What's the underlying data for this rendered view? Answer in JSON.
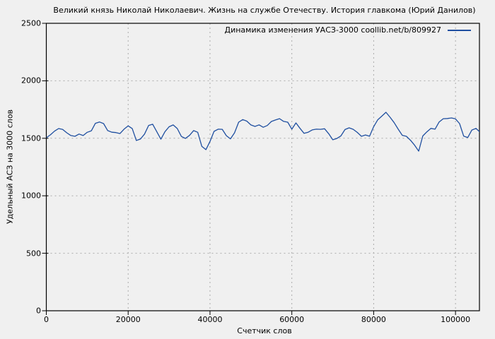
{
  "colors": {
    "background": "#f0f0f0",
    "plot_border": "#000000",
    "grid": "#ababab",
    "text": "#000000",
    "line": "#1f4fa0"
  },
  "chart_data": {
    "type": "line",
    "title": "Великий князь Николай Николаевич. Жизнь на службе Отечеству. История главкома (Юрий Данилов)",
    "xlabel": "Счетчик слов",
    "ylabel": "Удельный АСЗ на 3000 слов",
    "xlim": [
      0,
      105850
    ],
    "ylim": [
      0,
      2500
    ],
    "x_ticks": [
      0,
      20000,
      40000,
      60000,
      80000,
      100000
    ],
    "y_ticks": [
      0,
      500,
      1000,
      1500,
      2000,
      2500
    ],
    "grid": true,
    "grid_style": "dashed",
    "legend": {
      "position": "top-right-inside",
      "entries": [
        {
          "label": "Динамика изменения УАСЗ-3000 coollib.net/b/809927",
          "color": "#1f4fa0"
        }
      ]
    },
    "series": [
      {
        "name": "Динамика изменения УАСЗ-3000 coollib.net/b/809927",
        "color": "#1f4fa0",
        "x_start": 0,
        "x_step": 1000,
        "values": [
          1505,
          1530,
          1562,
          1585,
          1577,
          1548,
          1524,
          1517,
          1537,
          1524,
          1552,
          1565,
          1630,
          1642,
          1628,
          1567,
          1553,
          1550,
          1541,
          1579,
          1608,
          1584,
          1481,
          1493,
          1537,
          1612,
          1622,
          1558,
          1492,
          1558,
          1600,
          1616,
          1585,
          1516,
          1499,
          1525,
          1567,
          1552,
          1430,
          1401,
          1473,
          1560,
          1579,
          1578,
          1523,
          1495,
          1548,
          1640,
          1663,
          1649,
          1616,
          1603,
          1617,
          1596,
          1611,
          1646,
          1659,
          1671,
          1647,
          1640,
          1579,
          1634,
          1586,
          1543,
          1553,
          1573,
          1579,
          1578,
          1583,
          1540,
          1487,
          1498,
          1521,
          1576,
          1591,
          1578,
          1551,
          1517,
          1529,
          1518,
          1601,
          1661,
          1693,
          1726,
          1683,
          1636,
          1579,
          1526,
          1517,
          1483,
          1440,
          1388,
          1520,
          1556,
          1586,
          1579,
          1642,
          1670,
          1672,
          1677,
          1669,
          1628,
          1519,
          1507,
          1572,
          1586,
          1552
        ]
      }
    ]
  }
}
